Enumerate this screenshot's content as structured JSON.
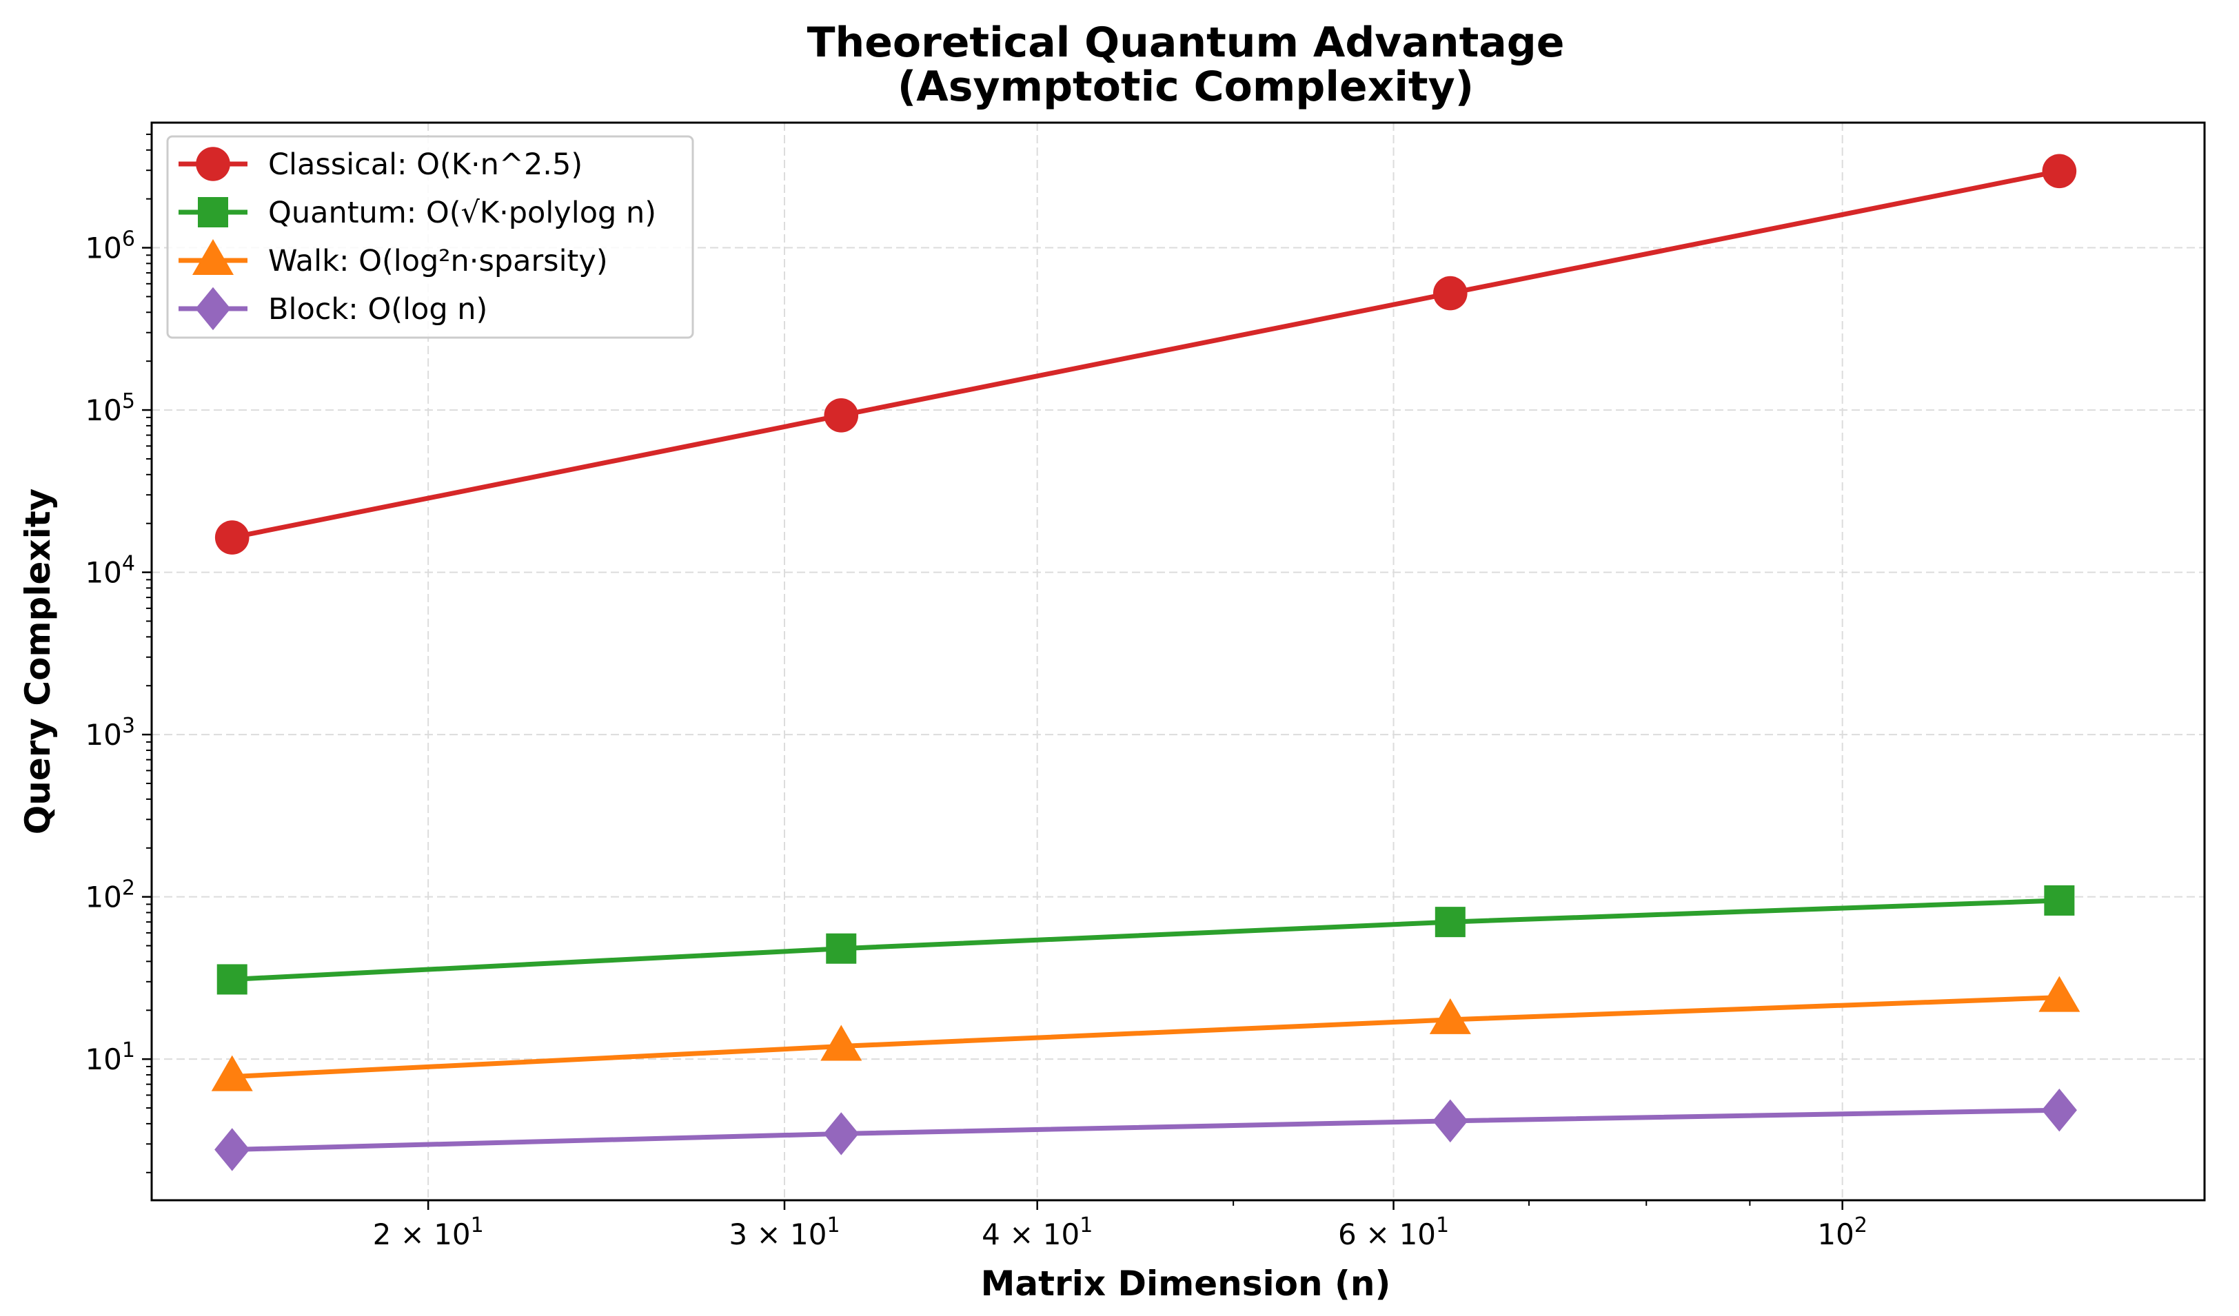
{
  "chart_data": {
    "type": "line",
    "title": "Theoretical Quantum Advantage",
    "subtitle": "(Asymptotic Complexity)",
    "xlabel": "Matrix Dimension (n)",
    "ylabel": "Query Complexity",
    "xscale": "log",
    "yscale": "log",
    "xlim": [
      14.6,
      151
    ],
    "ylim": [
      1.35,
      5900000
    ],
    "x": [
      16,
      32,
      64,
      128
    ],
    "x_ticks": [
      {
        "value": 20,
        "mantissa": "2",
        "times": "×",
        "base": "10",
        "exp": "1"
      },
      {
        "value": 30,
        "mantissa": "3",
        "times": "×",
        "base": "10",
        "exp": "1"
      },
      {
        "value": 40,
        "mantissa": "4",
        "times": "×",
        "base": "10",
        "exp": "1"
      },
      {
        "value": 60,
        "mantissa": "6",
        "times": "×",
        "base": "10",
        "exp": "1"
      },
      {
        "value": 100,
        "mantissa": "",
        "times": "",
        "base": "10",
        "exp": "2"
      }
    ],
    "y_ticks": [
      {
        "value": 10,
        "base": "10",
        "exp": "1"
      },
      {
        "value": 100,
        "base": "10",
        "exp": "2"
      },
      {
        "value": 1000,
        "base": "10",
        "exp": "3"
      },
      {
        "value": 10000,
        "base": "10",
        "exp": "4"
      },
      {
        "value": 100000,
        "base": "10",
        "exp": "5"
      },
      {
        "value": 1000000,
        "base": "10",
        "exp": "6"
      }
    ],
    "grid": true,
    "legend_position": "top-left",
    "series": [
      {
        "name": "Classical: O(K·n^2.5)",
        "color": "#d62728",
        "marker": "circle",
        "values": [
          16384,
          92682,
          524288,
          2965820
        ]
      },
      {
        "name": "Quantum: O(√K·polylog n)",
        "color": "#2ca02c",
        "marker": "square",
        "values": [
          31,
          48,
          70,
          95
        ]
      },
      {
        "name": "Walk: O(log²n·sparsity)",
        "color": "#ff7f0e",
        "marker": "triangle",
        "values": [
          7.8,
          12,
          17.5,
          24
        ]
      },
      {
        "name": "Block: O(log n)",
        "color": "#9467bd",
        "marker": "diamond",
        "values": [
          2.77,
          3.47,
          4.16,
          4.85
        ]
      }
    ]
  }
}
